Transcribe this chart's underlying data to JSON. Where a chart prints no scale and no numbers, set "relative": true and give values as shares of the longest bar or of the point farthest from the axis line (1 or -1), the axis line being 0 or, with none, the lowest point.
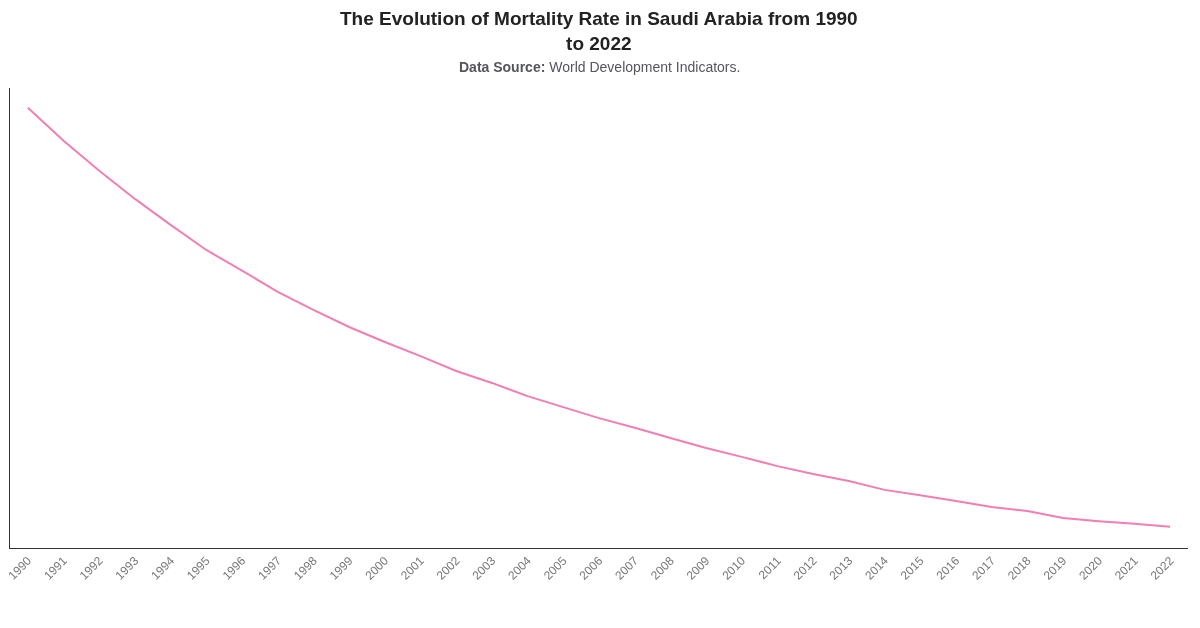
{
  "chart_data": {
    "type": "line",
    "title": "The Evolution of Mortality Rate in Saudi Arabia from 1990 to 2022",
    "subtitle": "Data Source: World Development Indicators.",
    "relative": true,
    "categories": [
      "1990",
      "1991",
      "1992",
      "1993",
      "1994",
      "1995",
      "1996",
      "1997",
      "1998",
      "1999",
      "2000",
      "2001",
      "2002",
      "2003",
      "2004",
      "2005",
      "2006",
      "2007",
      "2008",
      "2009",
      "2010",
      "2011",
      "2012",
      "2013",
      "2014",
      "2015",
      "2016",
      "2017",
      "2018",
      "2019",
      "2020",
      "2021",
      "2022"
    ],
    "series": [
      {
        "color": "#f27eb2",
        "values": [
          1,
          0.925,
          0.857,
          0.793,
          0.734,
          0.677,
          0.63,
          0.582,
          0.541,
          0.502,
          0.468,
          0.436,
          0.402,
          0.375,
          0.345,
          0.32,
          0.295,
          0.273,
          0.25,
          0.227,
          0.207,
          0.186,
          0.168,
          0.152,
          0.132,
          0.12,
          0.107,
          0.093,
          0.084,
          0.068,
          0.061,
          0.055,
          0.048
        ]
      }
    ],
    "grid": false,
    "marker": "none",
    "line_style": "solid"
  }
}
